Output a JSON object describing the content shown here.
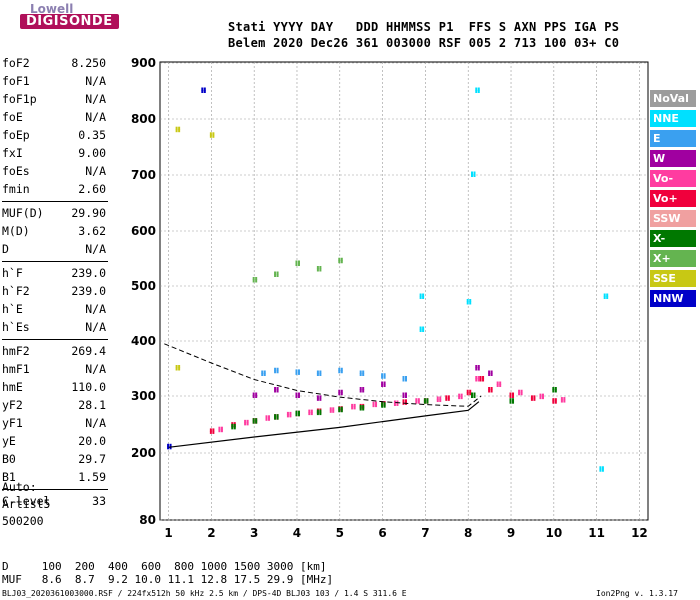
{
  "logo": {
    "top": "Lowell",
    "main": "DIGISONDE"
  },
  "header": {
    "line1": "Stati YYYY DAY   DDD HHMMSS P1  FFS S AXN PPS IGA PS",
    "line2": "Belem 2020 Dec26 361 003000 RSF 005 2 713 100 03+ C0"
  },
  "params": [
    {
      "name": "foF2",
      "value": "8.250"
    },
    {
      "name": "foF1",
      "value": "N/A"
    },
    {
      "name": "foF1p",
      "value": "N/A"
    },
    {
      "name": "foE",
      "value": "N/A"
    },
    {
      "name": "foEp",
      "value": "0.35"
    },
    {
      "name": "fxI",
      "value": "9.00"
    },
    {
      "name": "foEs",
      "value": "N/A"
    },
    {
      "name": "fmin",
      "value": "2.60"
    },
    {
      "name": "MUF(D)",
      "value": "29.90"
    },
    {
      "name": "M(D)",
      "value": "3.62"
    },
    {
      "name": "D",
      "value": "N/A"
    },
    {
      "name": "h`F",
      "value": "239.0"
    },
    {
      "name": "h`F2",
      "value": "239.0"
    },
    {
      "name": "h`E",
      "value": "N/A"
    },
    {
      "name": "h`Es",
      "value": "N/A"
    },
    {
      "name": "hmF2",
      "value": "269.4"
    },
    {
      "name": "hmF1",
      "value": "N/A"
    },
    {
      "name": "hmE",
      "value": "110.0"
    },
    {
      "name": "yF2",
      "value": "28.1"
    },
    {
      "name": "yF1",
      "value": "N/A"
    },
    {
      "name": "yE",
      "value": "20.0"
    },
    {
      "name": "B0",
      "value": "29.7"
    },
    {
      "name": "B1",
      "value": "1.59"
    },
    {
      "name": "C-level",
      "value": "33"
    }
  ],
  "autoscale": {
    "line1": "Auto:",
    "line2": "Artist5",
    "line3": "500200"
  },
  "legend": [
    {
      "label": "NoVal",
      "color": "#9c9c9c"
    },
    {
      "label": "NNE",
      "color": "#00e0ff"
    },
    {
      "label": "E",
      "color": "#3aa0f0"
    },
    {
      "label": "W",
      "color": "#a000a0"
    },
    {
      "label": "Vo-",
      "color": "#ff3ca0"
    },
    {
      "label": "Vo+",
      "color": "#f0003c"
    },
    {
      "label": "SSW",
      "color": "#f0a0a0"
    },
    {
      "label": "X-",
      "color": "#007800"
    },
    {
      "label": "X+",
      "color": "#64b450"
    },
    {
      "label": "SSE",
      "color": "#c8c814"
    },
    {
      "label": "NNW",
      "color": "#0000c8"
    }
  ],
  "footer": {
    "d_row": "D     100  200  400  600  800 1000 1500 3000 [km]",
    "muf_row": "MUF   8.6  8.7  9.2 10.0 11.1 12.8 17.5 29.9 [MHz]",
    "file": "BLJ03_2020361003000.RSF / 224fx512h 50 kHz 2.5 km / DPS-4D BLJ03 103 / 1.4 S 311.6 E",
    "version": "Ion2Png v. 1.3.17"
  },
  "chart_data": {
    "type": "scatter",
    "xlim": [
      0.8,
      12.2
    ],
    "ylim": [
      80,
      900
    ],
    "x_ticks": [
      1,
      2,
      3,
      4,
      5,
      6,
      7,
      8,
      9,
      10,
      11,
      12
    ],
    "y_ticks": [
      80,
      200,
      300,
      400,
      500,
      600,
      700,
      800,
      900
    ],
    "grid": true,
    "profile_curve": [
      [
        1,
        210
      ],
      [
        3,
        228
      ],
      [
        5,
        245
      ],
      [
        6,
        255
      ],
      [
        7,
        265
      ],
      [
        8,
        275
      ],
      [
        8.25,
        290
      ]
    ],
    "dashed_curve": [
      [
        0.9,
        395
      ],
      [
        2,
        360
      ],
      [
        3,
        330
      ],
      [
        4,
        310
      ],
      [
        5,
        298
      ],
      [
        6,
        290
      ],
      [
        7,
        285
      ],
      [
        8,
        282
      ],
      [
        8.3,
        300
      ]
    ],
    "series": [
      {
        "name": "Vo+",
        "points": [
          [
            2,
            237
          ],
          [
            2.5,
            248
          ],
          [
            3,
            255
          ],
          [
            3.5,
            262
          ],
          [
            4,
            268
          ],
          [
            4.5,
            272
          ],
          [
            5,
            276
          ],
          [
            5.5,
            280
          ],
          [
            6,
            285
          ],
          [
            6.5,
            288
          ],
          [
            7,
            290
          ],
          [
            7.5,
            295
          ],
          [
            8,
            305
          ],
          [
            8.3,
            330
          ],
          [
            8.5,
            310
          ],
          [
            9,
            300
          ],
          [
            9.5,
            295
          ],
          [
            10,
            290
          ]
        ]
      },
      {
        "name": "Vo-",
        "points": [
          [
            2.2,
            240
          ],
          [
            2.8,
            252
          ],
          [
            3.3,
            260
          ],
          [
            3.8,
            266
          ],
          [
            4.3,
            270
          ],
          [
            4.8,
            274
          ],
          [
            5.3,
            280
          ],
          [
            5.8,
            284
          ],
          [
            6.3,
            286
          ],
          [
            6.8,
            290
          ],
          [
            7.3,
            293
          ],
          [
            7.8,
            298
          ],
          [
            8.2,
            330
          ],
          [
            8.7,
            320
          ],
          [
            9.2,
            305
          ],
          [
            9.7,
            298
          ],
          [
            10.2,
            292
          ]
        ]
      },
      {
        "name": "W",
        "points": [
          [
            3,
            300
          ],
          [
            3.5,
            310
          ],
          [
            4,
            300
          ],
          [
            4.5,
            295
          ],
          [
            5,
            305
          ],
          [
            5.5,
            310
          ],
          [
            6,
            320
          ],
          [
            6.5,
            300
          ],
          [
            8.2,
            350
          ],
          [
            8.5,
            340
          ]
        ]
      },
      {
        "name": "E",
        "points": [
          [
            3.2,
            340
          ],
          [
            3.5,
            345
          ],
          [
            4,
            342
          ],
          [
            4.5,
            340
          ],
          [
            5,
            345
          ],
          [
            5.5,
            340
          ],
          [
            6,
            335
          ],
          [
            6.5,
            330
          ]
        ]
      },
      {
        "name": "X-",
        "points": [
          [
            2.5,
            245
          ],
          [
            3,
            255
          ],
          [
            3.5,
            262
          ],
          [
            4,
            268
          ],
          [
            4.5,
            270
          ],
          [
            5,
            275
          ],
          [
            5.5,
            278
          ],
          [
            6,
            283
          ],
          [
            7,
            290
          ],
          [
            8.1,
            300
          ],
          [
            9,
            290
          ],
          [
            10,
            310
          ]
        ]
      },
      {
        "name": "X+",
        "points": [
          [
            3.5,
            520
          ],
          [
            4,
            540
          ],
          [
            4.5,
            530
          ],
          [
            5,
            545
          ],
          [
            3,
            510
          ]
        ]
      },
      {
        "name": "NNE",
        "points": [
          [
            6.9,
            480
          ],
          [
            6.9,
            420
          ],
          [
            8,
            470
          ],
          [
            8.1,
            700
          ],
          [
            8.2,
            850
          ],
          [
            11.1,
            170
          ],
          [
            11.2,
            480
          ]
        ]
      },
      {
        "name": "SSE",
        "points": [
          [
            1.2,
            780
          ],
          [
            1.2,
            350
          ],
          [
            2,
            770
          ]
        ]
      },
      {
        "name": "NNW",
        "points": [
          [
            1,
            210
          ],
          [
            1.8,
            850
          ]
        ]
      }
    ]
  }
}
